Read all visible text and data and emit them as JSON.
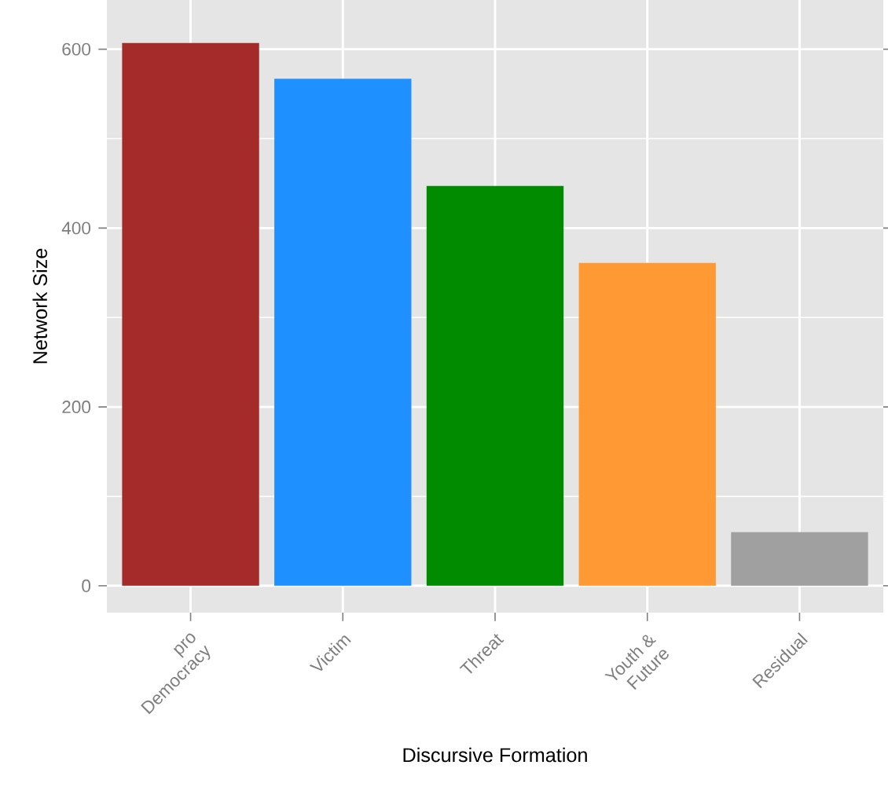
{
  "chart_data": {
    "type": "bar",
    "xlabel": "Discursive Formation",
    "ylabel": "Network Size",
    "categories": [
      "pro Democracy",
      "Victim",
      "Threat",
      "Youth & Future",
      "Residual"
    ],
    "values": [
      607,
      567,
      447,
      361,
      60
    ],
    "colors": [
      "#a52a2a",
      "#1e90ff",
      "#008b00",
      "#ff9933",
      "#a0a0a0"
    ],
    "ylim": [
      -30,
      655
    ],
    "yticks": [
      0,
      200,
      400,
      600
    ],
    "grid": true
  }
}
